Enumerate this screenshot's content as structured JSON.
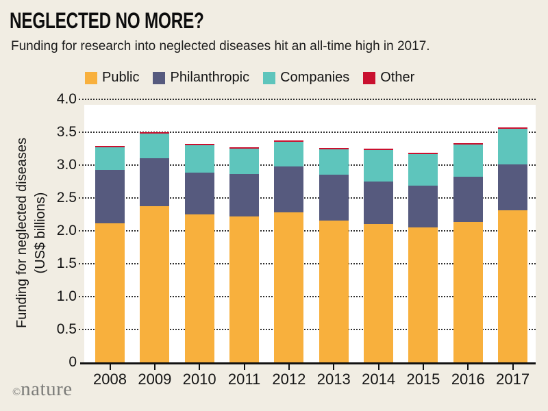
{
  "page": {
    "title": "NEGLECTED NO MORE?",
    "subtitle": "Funding for research into neglected diseases hit an all-time high in 2017.",
    "credit_symbol": "©",
    "credit_name": "nature"
  },
  "colors": {
    "background": "#f1ede3",
    "plot_background": "#ffffff",
    "public": "#f8b03d",
    "philanthropic": "#565a7e",
    "companies": "#5ec5bc",
    "other": "#c9102f",
    "axis": "#111111",
    "grid_dots": "#2e2e2e",
    "credit_gray": "#7c7c79"
  },
  "chart_data": {
    "type": "bar",
    "stacked": true,
    "title": "NEGLECTED NO MORE?",
    "subtitle": "Funding for research into neglected diseases hit an all-time high in 2017.",
    "categories": [
      "2008",
      "2009",
      "2010",
      "2011",
      "2012",
      "2013",
      "2014",
      "2015",
      "2016",
      "2017"
    ],
    "series": [
      {
        "name": "Public",
        "color": "#f8b03d",
        "values": [
          2.11,
          2.37,
          2.25,
          2.22,
          2.28,
          2.16,
          2.1,
          2.05,
          2.14,
          2.31
        ]
      },
      {
        "name": "Philanthropic",
        "color": "#565a7e",
        "values": [
          0.82,
          0.73,
          0.64,
          0.64,
          0.7,
          0.69,
          0.65,
          0.64,
          0.68,
          0.7
        ]
      },
      {
        "name": "Companies",
        "color": "#5ec5bc",
        "values": [
          0.34,
          0.38,
          0.41,
          0.39,
          0.37,
          0.39,
          0.48,
          0.48,
          0.49,
          0.54
        ]
      },
      {
        "name": "Other",
        "color": "#c9102f",
        "values": [
          0.02,
          0.02,
          0.02,
          0.02,
          0.02,
          0.02,
          0.02,
          0.02,
          0.02,
          0.02
        ]
      }
    ],
    "totals": [
      3.29,
      3.5,
      3.32,
      3.27,
      3.37,
      3.26,
      3.25,
      3.19,
      3.33,
      3.57
    ],
    "ylabel_line1": "Funding for neglected diseases",
    "ylabel_line2": "(US$ billions)",
    "xlabel": "",
    "ylim": [
      0,
      4.0
    ],
    "yticks": [
      "4.0",
      "3.5",
      "3.0",
      "2.5",
      "2.0",
      "1.5",
      "1.0",
      "0.5",
      "0"
    ],
    "grid": "horizontal-dotted",
    "legend_position": "top"
  }
}
